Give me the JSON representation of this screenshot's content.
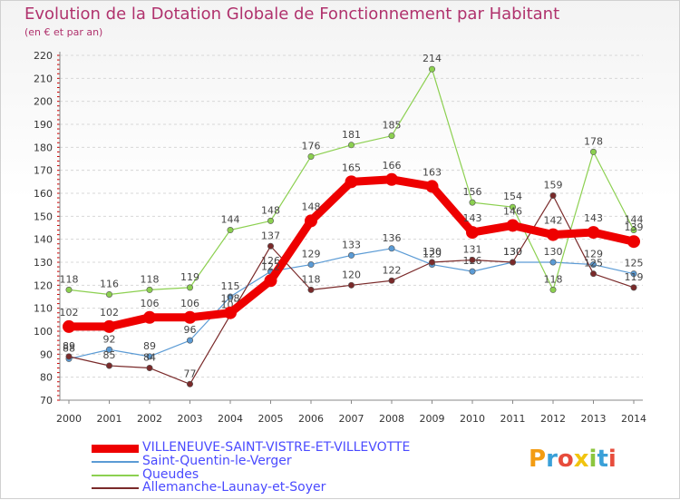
{
  "header": {
    "title": "Evolution de la Dotation Globale de Fonctionnement par Habitant",
    "subtitle": "(en € et par an)"
  },
  "chart_data": {
    "type": "line",
    "title": "Evolution de la Dotation Globale de Fonctionnement par Habitant",
    "subtitle": "(en € et par an)",
    "xlabel": "",
    "ylabel": "",
    "categories": [
      "2000",
      "2001",
      "2002",
      "2003",
      "2004",
      "2005",
      "2006",
      "2007",
      "2008",
      "2009",
      "2010",
      "2011",
      "2012",
      "2013",
      "2014"
    ],
    "ylim": [
      70,
      220
    ],
    "yticks": [
      70,
      80,
      90,
      100,
      110,
      120,
      130,
      140,
      150,
      160,
      170,
      180,
      190,
      200,
      210,
      220
    ],
    "grid": true,
    "series": [
      {
        "name": "VILLENEUVE-SAINT-VISTRE-ET-VILLEVOTTE",
        "color": "#ee0000",
        "values": [
          102,
          102,
          106,
          106,
          108,
          122,
          148,
          165,
          166,
          163,
          143,
          146,
          142,
          143,
          139
        ],
        "labels": [
          "102",
          "102",
          "106",
          "106",
          "108",
          "122",
          "148",
          "165",
          "166",
          "163",
          "143",
          "146",
          "142",
          "143",
          "139"
        ]
      },
      {
        "name": "Saint-Quentin-le-Verger",
        "color": "#5b9bd5",
        "values": [
          88,
          92,
          89,
          96,
          115,
          126,
          129,
          133,
          136,
          129,
          126,
          130,
          130,
          129,
          125
        ],
        "labels": [
          "88",
          "92",
          "89",
          "96",
          "115",
          "126",
          "129",
          "133",
          "136",
          "129",
          "126",
          "130",
          "130",
          "129",
          "125"
        ]
      },
      {
        "name": "Queudes",
        "color": "#8cd050",
        "values": [
          118,
          116,
          118,
          119,
          144,
          148,
          176,
          181,
          185,
          214,
          156,
          154,
          118,
          178,
          144
        ],
        "labels": [
          "118",
          "116",
          "118",
          "119",
          "144",
          "148",
          "176",
          "181",
          "185",
          "214",
          "156",
          "154",
          "118",
          "178",
          "144"
        ]
      },
      {
        "name": "Allemanche-Launay-et-Soyer",
        "color": "#7a2a2a",
        "values": [
          89,
          85,
          84,
          77,
          107,
          137,
          118,
          120,
          122,
          130,
          131,
          130,
          159,
          125,
          119
        ],
        "labels": [
          "89",
          "85",
          "84",
          "77",
          "107",
          "137",
          "118",
          "120",
          "122",
          "130",
          "131",
          "130",
          "159",
          "125",
          "119"
        ]
      }
    ]
  },
  "logo": {
    "letters": [
      "P",
      "r",
      "o",
      "x",
      "i",
      "t",
      "i"
    ],
    "colors": [
      "#f39c12",
      "#3aa0d8",
      "#e74c3c",
      "#f1c40f",
      "#8cc63f",
      "#3aa0d8",
      "#e74c3c"
    ]
  }
}
